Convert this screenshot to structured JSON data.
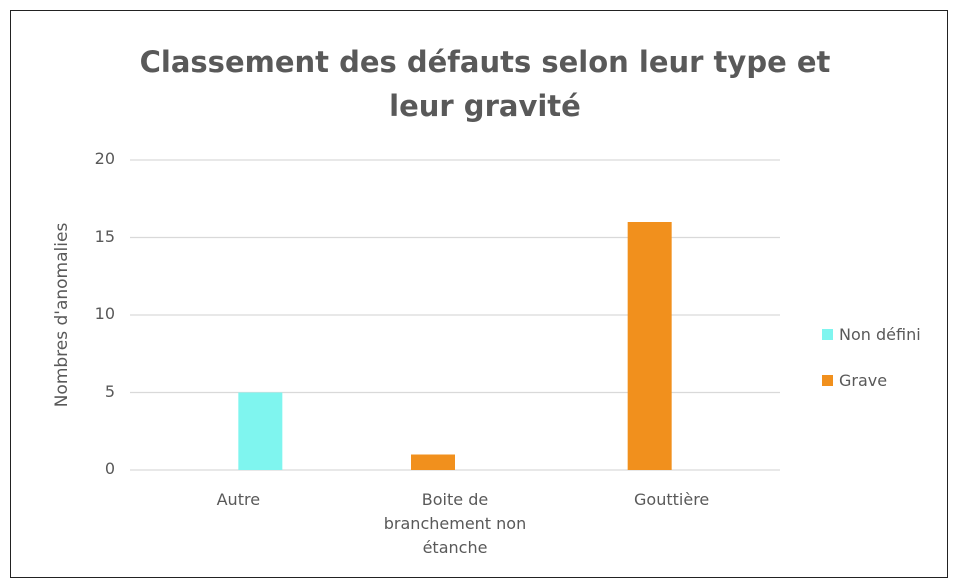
{
  "chart_data": {
    "type": "bar",
    "title": "Classement des défauts selon leur type et leur gravité",
    "y_label": "Nombres d'anomalies",
    "categories": [
      "Autre",
      "Boite de branchement non étanche",
      "Gouttière"
    ],
    "series": [
      {
        "name": "Non défini",
        "color": "#7ff5ef",
        "values": [
          5,
          null,
          null
        ]
      },
      {
        "name": "Grave",
        "color": "#f1901d",
        "values": [
          null,
          1,
          16
        ]
      }
    ],
    "ylim": [
      0,
      20
    ],
    "yticks": [
      0,
      5,
      10,
      15,
      20
    ],
    "grid": true,
    "legend": "right"
  }
}
